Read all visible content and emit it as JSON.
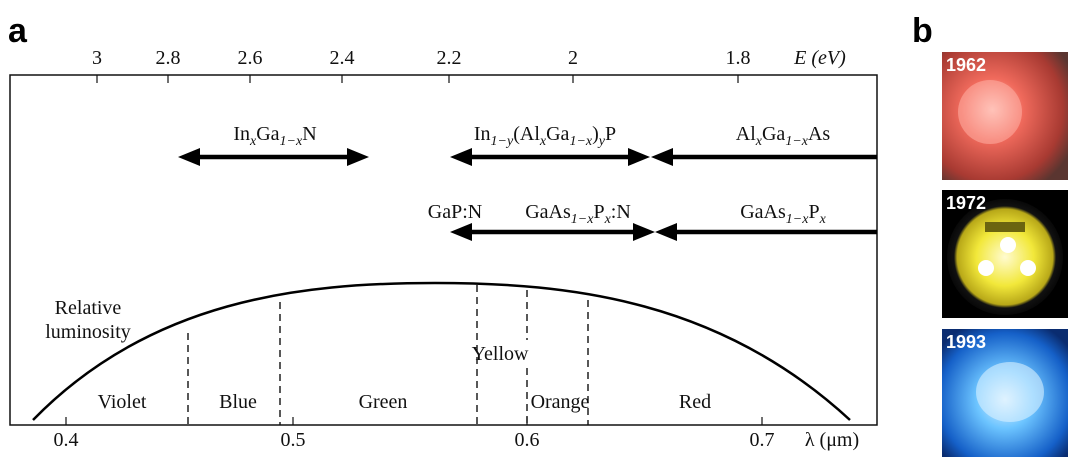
{
  "panel_a": {
    "label": "a",
    "top_axis": {
      "label": "E (eV)",
      "ticks": [
        "3",
        "2.8",
        "2.6",
        "2.4",
        "2.2",
        "2",
        "1.8"
      ]
    },
    "bottom_axis": {
      "label": "λ (μm)",
      "ticks": [
        "0.4",
        "0.5",
        "0.6",
        "0.7"
      ]
    },
    "materials": [
      [
        {
          "text": "In"
        },
        {
          "text": "x",
          "sub": true
        },
        {
          "text": "Ga"
        },
        {
          "text": "1−x",
          "sub": true
        },
        {
          "text": "N"
        }
      ],
      [
        {
          "text": "In"
        },
        {
          "text": "1−y",
          "sub": true
        },
        {
          "text": "(Al"
        },
        {
          "text": "x",
          "sub": true
        },
        {
          "text": "Ga"
        },
        {
          "text": "1−x",
          "sub": true
        },
        {
          "text": ")"
        },
        {
          "text": "y",
          "sub": true
        },
        {
          "text": "P"
        }
      ],
      [
        {
          "text": "Al"
        },
        {
          "text": "x",
          "sub": true
        },
        {
          "text": "Ga"
        },
        {
          "text": "1−x",
          "sub": true
        },
        {
          "text": "As"
        }
      ],
      [
        {
          "text": "GaP:N"
        }
      ],
      [
        {
          "text": "GaAs"
        },
        {
          "text": "1−x",
          "sub": true
        },
        {
          "text": "P"
        },
        {
          "text": "x",
          "sub": true
        },
        {
          "text": ":N"
        }
      ],
      [
        {
          "text": "GaAs"
        },
        {
          "text": "1−x",
          "sub": true
        },
        {
          "text": "P"
        },
        {
          "text": "x",
          "sub": true
        }
      ]
    ],
    "curve_label": [
      "Relative",
      "luminosity"
    ],
    "colors": [
      "Violet",
      "Blue",
      "Green",
      "Yellow",
      "Orange",
      "Red"
    ]
  },
  "panel_b": {
    "label": "b",
    "photos": [
      {
        "year": "1962"
      },
      {
        "year": "1972"
      },
      {
        "year": "1993"
      }
    ]
  }
}
